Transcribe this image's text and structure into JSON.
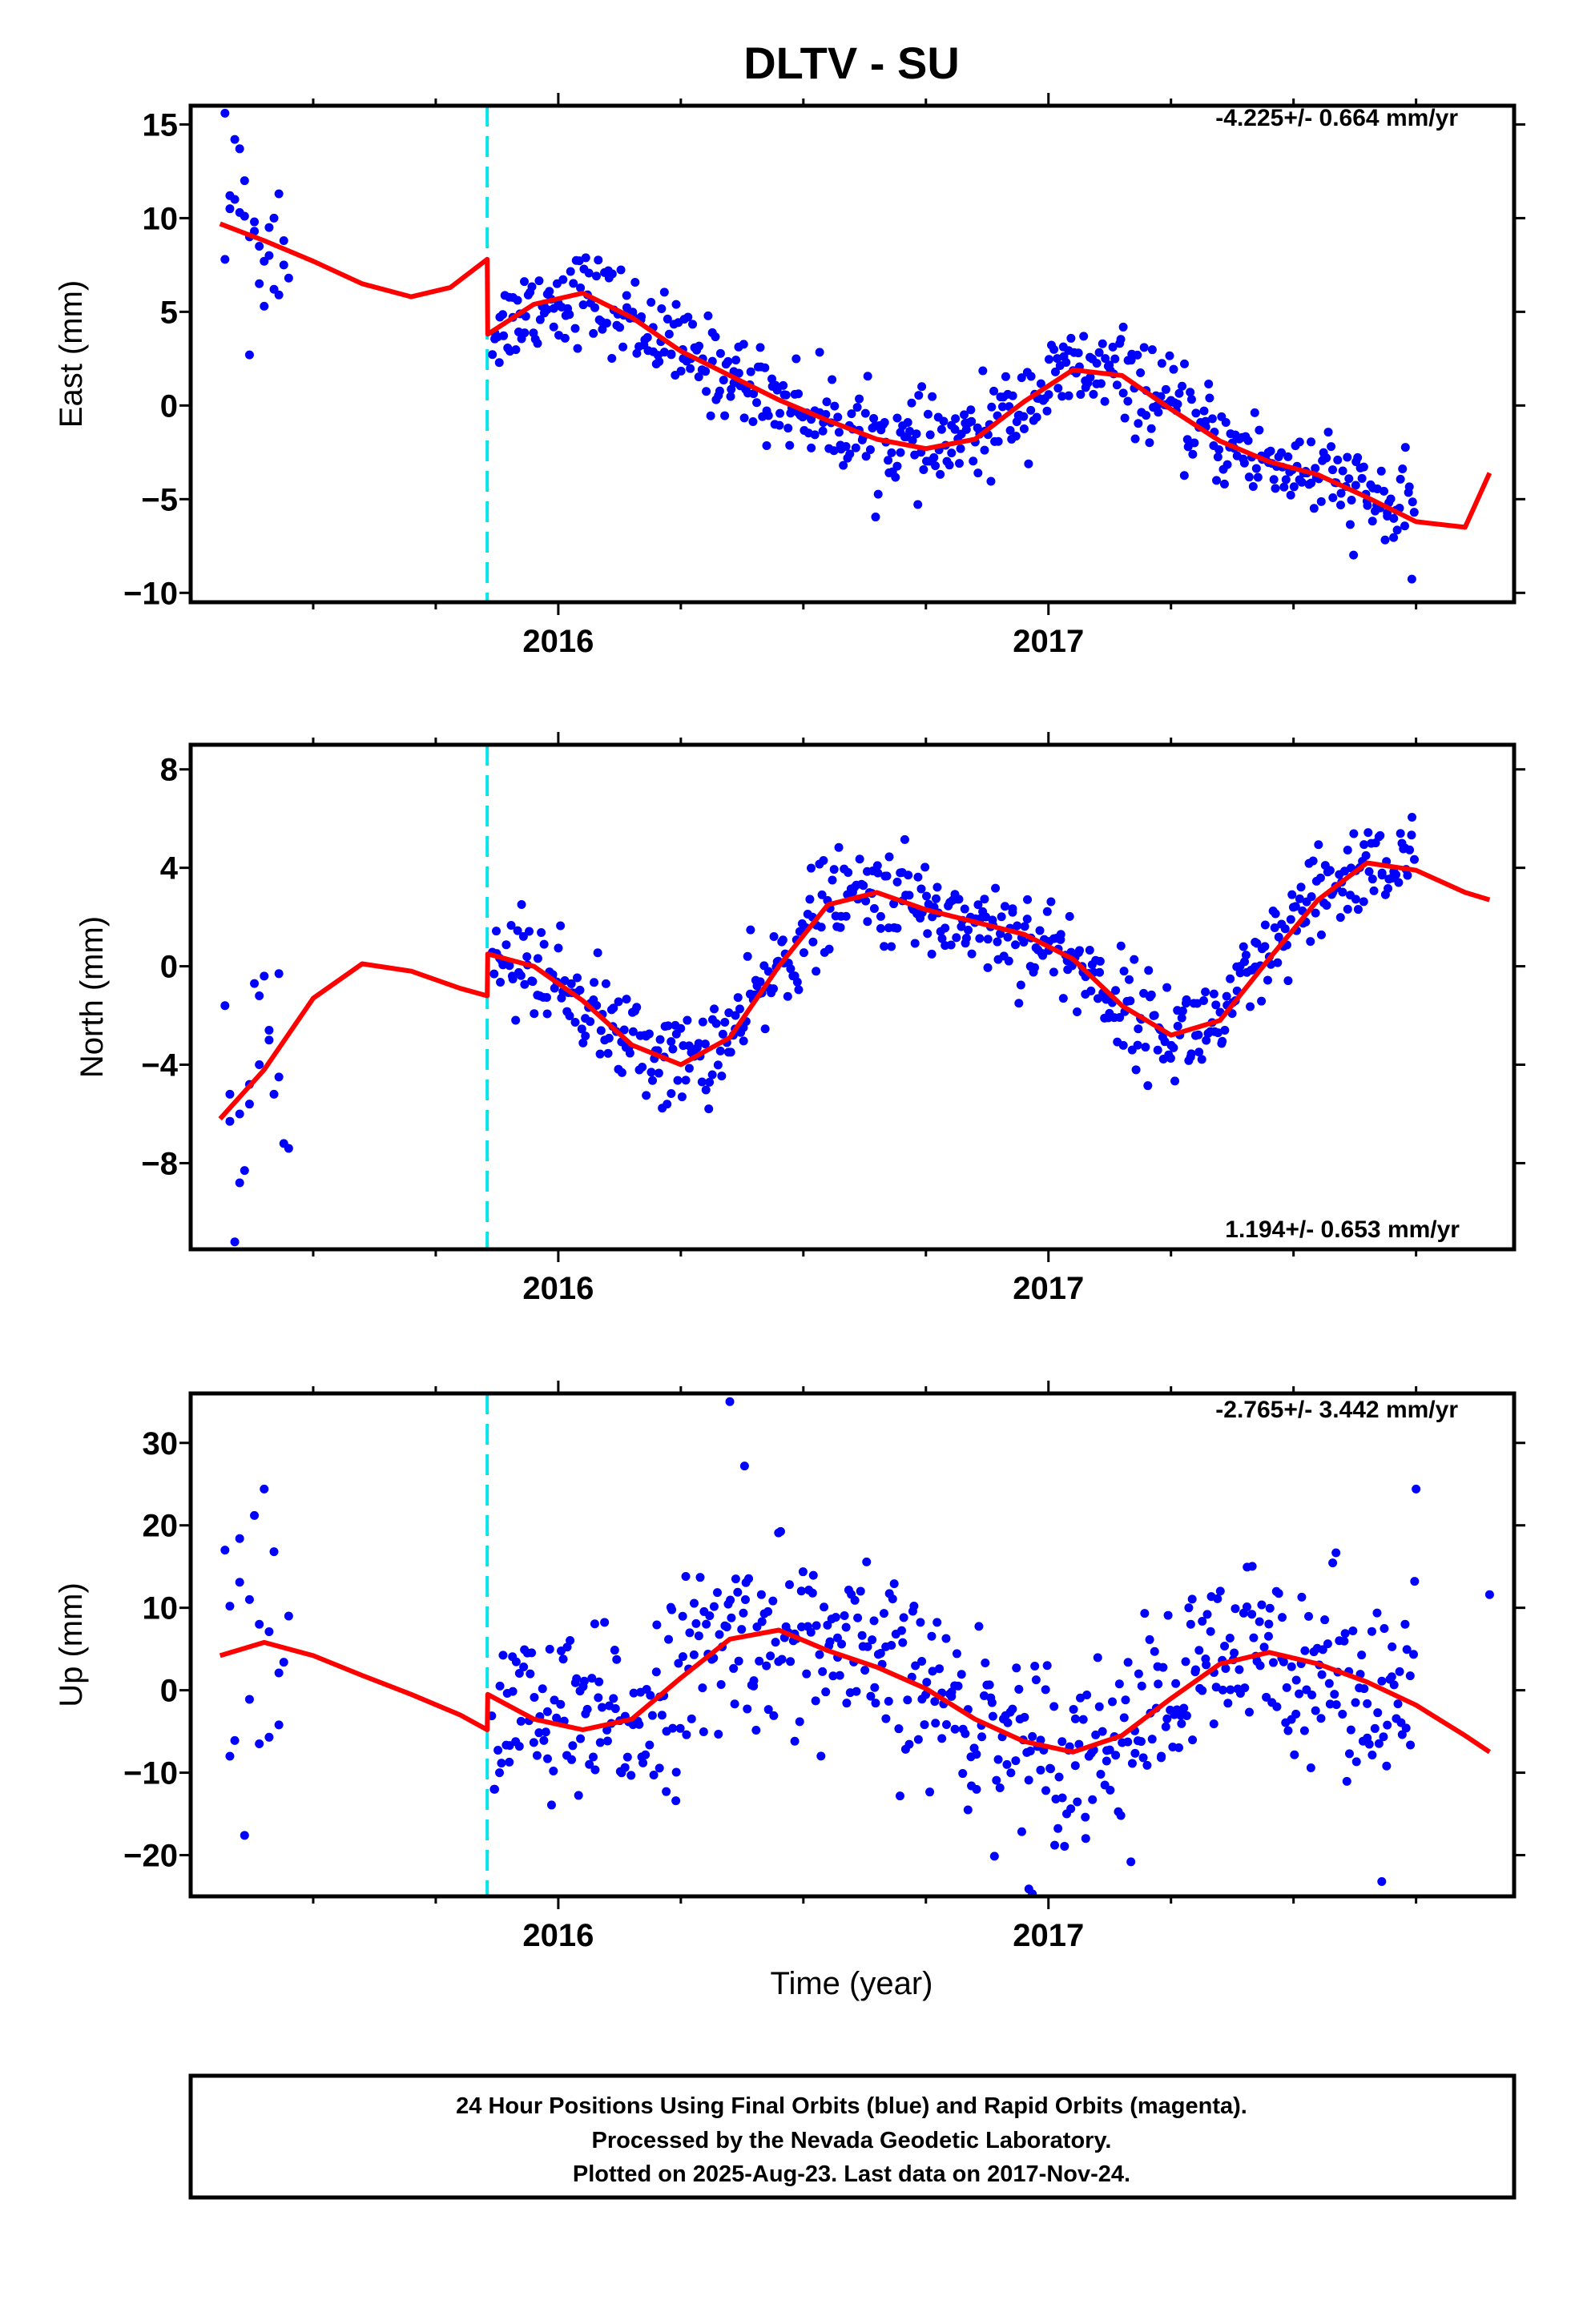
{
  "title": "DLTV - SU",
  "xlabel": "Time (year)",
  "footer": [
    "24 Hour Positions Using Final Orbits (blue) and Rapid Orbits (magenta).",
    "Processed by the Nevada Geodetic Laboratory.",
    "Plotted on 2025-Aug-23. Last data on 2017-Nov-24."
  ],
  "colors": {
    "data": "#0000ff",
    "model": "#ff0000",
    "equipment_change": "#00e5ee",
    "frame": "#000000"
  },
  "chart_data": [
    {
      "type": "scatter",
      "component": "east",
      "ylabel": "East (mm)",
      "rate_label": "-4.225+/- 0.664 mm/yr",
      "rate_position": "top-right",
      "xlim": [
        2015.25,
        2017.95
      ],
      "ylim": [
        -10.5,
        16
      ],
      "yticks": [
        -10,
        -5,
        0,
        5,
        10,
        15
      ],
      "xticks": [
        2016,
        2017
      ],
      "xtick_labels": [
        "2016",
        "2017"
      ],
      "offset_epoch": 2015.855,
      "model": {
        "x": [
          2015.31,
          2015.4,
          2015.5,
          2015.6,
          2015.7,
          2015.78,
          2015.855,
          2015.856,
          2015.95,
          2016.05,
          2016.15,
          2016.25,
          2016.35,
          2016.45,
          2016.55,
          2016.65,
          2016.75,
          2016.85,
          2016.95,
          2017.05,
          2017.15,
          2017.25,
          2017.35,
          2017.45,
          2017.55,
          2017.65,
          2017.75,
          2017.85,
          2017.9
        ],
        "y": [
          9.7,
          8.8,
          7.7,
          6.5,
          5.8,
          6.3,
          7.8,
          3.8,
          5.4,
          6.0,
          4.7,
          2.9,
          1.6,
          0.3,
          -0.8,
          -1.8,
          -2.3,
          -1.8,
          0.2,
          1.9,
          1.6,
          -0.2,
          -1.9,
          -3.0,
          -3.7,
          -4.9,
          -6.2,
          -6.5,
          -3.6
        ]
      },
      "points": {
        "x": [
          2015.32,
          2015.33,
          2015.34,
          2015.35,
          2015.36,
          2015.37,
          2015.38,
          2015.39,
          2015.4,
          2015.41,
          2015.42,
          2015.43,
          2015.44,
          2015.45,
          2015.32,
          2015.34,
          2015.36,
          2015.38,
          2015.4,
          2015.42,
          2015.44,
          2015.35,
          2015.37,
          2015.33,
          2015.39,
          2015.41,
          2015.43
        ],
        "y": [
          15.6,
          11.2,
          14.2,
          10.3,
          12.0,
          2.7,
          9.8,
          8.5,
          5.3,
          8.0,
          6.2,
          11.3,
          7.5,
          6.8,
          7.8,
          11.0,
          10.1,
          9.3,
          7.7,
          10.0,
          8.8,
          13.7,
          9.0,
          10.5,
          6.5,
          9.5,
          5.9
        ],
        "n_generated": 560,
        "scatter_sd": 1.2
      }
    },
    {
      "type": "scatter",
      "component": "north",
      "ylabel": "North (mm)",
      "rate_label": "1.194+/- 0.653 mm/yr",
      "rate_position": "bottom-right",
      "xlim": [
        2015.25,
        2017.95
      ],
      "ylim": [
        -11.5,
        9
      ],
      "yticks": [
        -8,
        -4,
        0,
        4,
        8
      ],
      "xticks": [
        2016,
        2017
      ],
      "xtick_labels": [
        "2016",
        "2017"
      ],
      "offset_epoch": 2015.855,
      "model": {
        "x": [
          2015.31,
          2015.4,
          2015.5,
          2015.6,
          2015.7,
          2015.8,
          2015.855,
          2015.856,
          2015.95,
          2016.05,
          2016.15,
          2016.25,
          2016.35,
          2016.45,
          2016.55,
          2016.65,
          2016.75,
          2016.85,
          2016.95,
          2017.05,
          2017.15,
          2017.25,
          2017.35,
          2017.45,
          2017.55,
          2017.65,
          2017.75,
          2017.85,
          2017.9
        ],
        "y": [
          -6.2,
          -4.2,
          -1.3,
          0.1,
          -0.2,
          -0.9,
          -1.2,
          0.5,
          0.0,
          -1.4,
          -3.2,
          -4.0,
          -2.9,
          0.0,
          2.5,
          3.0,
          2.3,
          1.8,
          1.3,
          0.3,
          -1.6,
          -2.8,
          -2.2,
          0.3,
          2.7,
          4.2,
          3.9,
          3.0,
          2.7
        ]
      },
      "points": {
        "x": [
          2015.32,
          2015.33,
          2015.34,
          2015.35,
          2015.36,
          2015.37,
          2015.38,
          2015.39,
          2015.4,
          2015.41,
          2015.42,
          2015.43,
          2015.44,
          2015.45,
          2015.33,
          2015.35,
          2015.37,
          2015.39,
          2015.41,
          2015.43
        ],
        "y": [
          -1.6,
          -5.2,
          -11.2,
          -6.0,
          -8.3,
          -4.8,
          -0.7,
          -4.0,
          -0.4,
          -2.6,
          -5.2,
          -0.3,
          -7.2,
          -7.4,
          -6.3,
          -8.8,
          -5.6,
          -1.2,
          -3.0,
          -4.5
        ],
        "n_generated": 560,
        "scatter_sd": 1.0
      }
    },
    {
      "type": "scatter",
      "component": "up",
      "ylabel": "Up (mm)",
      "rate_label": "-2.765+/- 3.442 mm/yr",
      "rate_position": "top-right",
      "xlim": [
        2015.25,
        2017.95
      ],
      "ylim": [
        -25,
        36
      ],
      "yticks": [
        -20,
        -10,
        0,
        10,
        20,
        30
      ],
      "xticks": [
        2016,
        2017
      ],
      "xtick_labels": [
        "2016",
        "2017"
      ],
      "offset_epoch": 2015.855,
      "model": {
        "x": [
          2015.31,
          2015.4,
          2015.5,
          2015.6,
          2015.7,
          2015.8,
          2015.855,
          2015.856,
          2015.95,
          2016.05,
          2016.15,
          2016.25,
          2016.35,
          2016.45,
          2016.55,
          2016.65,
          2016.75,
          2016.85,
          2016.95,
          2017.05,
          2017.15,
          2017.25,
          2017.35,
          2017.45,
          2017.55,
          2017.65,
          2017.75,
          2017.85,
          2017.9
        ],
        "y": [
          4.2,
          5.8,
          4.2,
          1.8,
          -0.5,
          -3.0,
          -4.8,
          -0.5,
          -3.5,
          -4.8,
          -3.5,
          1.5,
          6.2,
          7.3,
          4.8,
          2.8,
          0.2,
          -3.5,
          -6.2,
          -7.5,
          -5.5,
          -1.0,
          3.2,
          4.6,
          3.2,
          1.0,
          -1.8,
          -5.5,
          -7.5
        ]
      },
      "points": {
        "x": [
          2015.32,
          2015.33,
          2015.34,
          2015.35,
          2015.36,
          2015.37,
          2015.38,
          2015.39,
          2015.4,
          2015.41,
          2015.42,
          2015.43,
          2015.44,
          2015.45,
          2015.33,
          2015.35,
          2015.37,
          2015.39,
          2015.41,
          2015.43,
          2016.35,
          2016.38,
          2016.96,
          2017.68,
          2017.75,
          2017.9
        ],
        "y": [
          17.0,
          10.2,
          -6.1,
          18.4,
          -17.6,
          11.0,
          21.2,
          -6.5,
          24.4,
          7.1,
          16.8,
          -4.2,
          3.4,
          9.0,
          -8.0,
          13.1,
          -1.1,
          8.0,
          -5.7,
          2.1,
          35.0,
          27.2,
          -24.1,
          -23.2,
          24.4,
          11.6
        ],
        "n_generated": 560,
        "scatter_sd": 5.5
      }
    }
  ]
}
